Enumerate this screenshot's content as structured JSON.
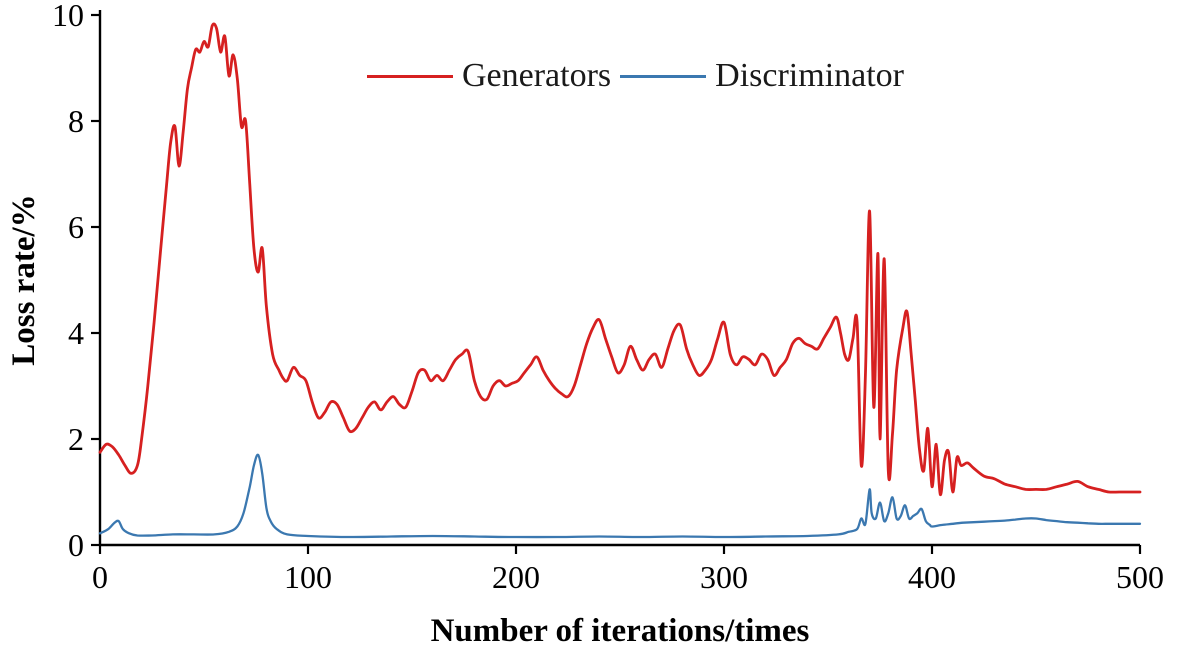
{
  "page": {
    "background": "#ffffff"
  },
  "chart_data": {
    "type": "line",
    "title": "",
    "xlabel": "Number of iterations/times",
    "ylabel": "Loss rate/%",
    "xlim": [
      0,
      500
    ],
    "ylim": [
      0,
      10
    ],
    "xticks": [
      0,
      100,
      200,
      300,
      400,
      500
    ],
    "yticks": [
      0,
      2,
      4,
      6,
      8,
      10
    ],
    "grid": false,
    "axis_color": "#000000",
    "legend_position": "top-center",
    "series": [
      {
        "name": "Generators",
        "color": "#d62020",
        "width": 2.8,
        "points": [
          [
            0,
            1.75
          ],
          [
            3,
            1.9
          ],
          [
            6,
            1.85
          ],
          [
            9,
            1.7
          ],
          [
            12,
            1.5
          ],
          [
            15,
            1.35
          ],
          [
            18,
            1.5
          ],
          [
            20,
            2.0
          ],
          [
            23,
            3.0
          ],
          [
            26,
            4.2
          ],
          [
            29,
            5.5
          ],
          [
            32,
            6.8
          ],
          [
            34,
            7.6
          ],
          [
            36,
            7.9
          ],
          [
            38,
            7.15
          ],
          [
            40,
            7.8
          ],
          [
            42,
            8.6
          ],
          [
            44,
            9.0
          ],
          [
            46,
            9.35
          ],
          [
            48,
            9.3
          ],
          [
            50,
            9.5
          ],
          [
            52,
            9.4
          ],
          [
            54,
            9.8
          ],
          [
            56,
            9.75
          ],
          [
            58,
            9.3
          ],
          [
            60,
            9.6
          ],
          [
            62,
            8.85
          ],
          [
            64,
            9.25
          ],
          [
            66,
            8.8
          ],
          [
            68,
            7.9
          ],
          [
            70,
            8.0
          ],
          [
            72,
            6.8
          ],
          [
            74,
            5.6
          ],
          [
            76,
            5.15
          ],
          [
            78,
            5.6
          ],
          [
            80,
            4.5
          ],
          [
            83,
            3.6
          ],
          [
            86,
            3.3
          ],
          [
            88,
            3.15
          ],
          [
            90,
            3.1
          ],
          [
            93,
            3.35
          ],
          [
            96,
            3.2
          ],
          [
            99,
            3.1
          ],
          [
            102,
            2.7
          ],
          [
            105,
            2.4
          ],
          [
            108,
            2.5
          ],
          [
            111,
            2.7
          ],
          [
            114,
            2.65
          ],
          [
            117,
            2.4
          ],
          [
            120,
            2.15
          ],
          [
            123,
            2.2
          ],
          [
            126,
            2.4
          ],
          [
            129,
            2.6
          ],
          [
            132,
            2.7
          ],
          [
            135,
            2.55
          ],
          [
            138,
            2.7
          ],
          [
            141,
            2.8
          ],
          [
            144,
            2.65
          ],
          [
            147,
            2.6
          ],
          [
            150,
            2.9
          ],
          [
            153,
            3.25
          ],
          [
            156,
            3.3
          ],
          [
            159,
            3.1
          ],
          [
            162,
            3.2
          ],
          [
            165,
            3.1
          ],
          [
            168,
            3.3
          ],
          [
            171,
            3.5
          ],
          [
            174,
            3.6
          ],
          [
            177,
            3.65
          ],
          [
            180,
            3.1
          ],
          [
            183,
            2.8
          ],
          [
            186,
            2.75
          ],
          [
            189,
            3.0
          ],
          [
            192,
            3.1
          ],
          [
            195,
            3.0
          ],
          [
            198,
            3.05
          ],
          [
            201,
            3.1
          ],
          [
            204,
            3.25
          ],
          [
            207,
            3.4
          ],
          [
            210,
            3.55
          ],
          [
            213,
            3.3
          ],
          [
            216,
            3.1
          ],
          [
            219,
            2.95
          ],
          [
            222,
            2.85
          ],
          [
            225,
            2.8
          ],
          [
            228,
            3.0
          ],
          [
            231,
            3.4
          ],
          [
            234,
            3.8
          ],
          [
            237,
            4.1
          ],
          [
            240,
            4.25
          ],
          [
            243,
            3.9
          ],
          [
            246,
            3.55
          ],
          [
            249,
            3.25
          ],
          [
            252,
            3.4
          ],
          [
            255,
            3.75
          ],
          [
            258,
            3.5
          ],
          [
            261,
            3.3
          ],
          [
            264,
            3.5
          ],
          [
            267,
            3.6
          ],
          [
            270,
            3.35
          ],
          [
            273,
            3.7
          ],
          [
            276,
            4.05
          ],
          [
            279,
            4.15
          ],
          [
            282,
            3.7
          ],
          [
            285,
            3.4
          ],
          [
            288,
            3.2
          ],
          [
            291,
            3.3
          ],
          [
            294,
            3.5
          ],
          [
            297,
            3.9
          ],
          [
            300,
            4.2
          ],
          [
            303,
            3.6
          ],
          [
            306,
            3.4
          ],
          [
            309,
            3.55
          ],
          [
            312,
            3.5
          ],
          [
            315,
            3.4
          ],
          [
            318,
            3.6
          ],
          [
            321,
            3.5
          ],
          [
            324,
            3.2
          ],
          [
            327,
            3.35
          ],
          [
            330,
            3.5
          ],
          [
            333,
            3.8
          ],
          [
            336,
            3.9
          ],
          [
            339,
            3.8
          ],
          [
            342,
            3.75
          ],
          [
            345,
            3.7
          ],
          [
            348,
            3.9
          ],
          [
            351,
            4.1
          ],
          [
            354,
            4.3
          ],
          [
            356,
            4.0
          ],
          [
            358,
            3.6
          ],
          [
            360,
            3.5
          ],
          [
            362,
            3.9
          ],
          [
            364,
            4.2
          ],
          [
            366,
            1.5
          ],
          [
            368,
            3.2
          ],
          [
            370,
            6.3
          ],
          [
            372,
            2.6
          ],
          [
            374,
            5.5
          ],
          [
            375,
            2.0
          ],
          [
            377,
            5.4
          ],
          [
            379,
            1.4
          ],
          [
            381,
            2.1
          ],
          [
            383,
            3.3
          ],
          [
            386,
            4.1
          ],
          [
            388,
            4.4
          ],
          [
            390,
            3.6
          ],
          [
            392,
            2.7
          ],
          [
            394,
            1.8
          ],
          [
            396,
            1.4
          ],
          [
            398,
            2.2
          ],
          [
            400,
            1.1
          ],
          [
            402,
            1.9
          ],
          [
            404,
            0.95
          ],
          [
            406,
            1.6
          ],
          [
            408,
            1.75
          ],
          [
            410,
            1.0
          ],
          [
            412,
            1.65
          ],
          [
            414,
            1.5
          ],
          [
            417,
            1.55
          ],
          [
            420,
            1.45
          ],
          [
            425,
            1.3
          ],
          [
            430,
            1.25
          ],
          [
            435,
            1.15
          ],
          [
            440,
            1.1
          ],
          [
            445,
            1.05
          ],
          [
            450,
            1.05
          ],
          [
            455,
            1.05
          ],
          [
            460,
            1.1
          ],
          [
            465,
            1.15
          ],
          [
            470,
            1.2
          ],
          [
            475,
            1.1
          ],
          [
            480,
            1.05
          ],
          [
            485,
            1.0
          ],
          [
            490,
            1.0
          ],
          [
            495,
            1.0
          ],
          [
            500,
            1.0
          ]
        ]
      },
      {
        "name": "Discriminator",
        "color": "#3b78b0",
        "width": 2.3,
        "points": [
          [
            0,
            0.22
          ],
          [
            4,
            0.3
          ],
          [
            7,
            0.42
          ],
          [
            9,
            0.45
          ],
          [
            11,
            0.3
          ],
          [
            14,
            0.22
          ],
          [
            18,
            0.18
          ],
          [
            25,
            0.18
          ],
          [
            35,
            0.2
          ],
          [
            45,
            0.2
          ],
          [
            55,
            0.2
          ],
          [
            62,
            0.25
          ],
          [
            66,
            0.35
          ],
          [
            69,
            0.6
          ],
          [
            72,
            1.1
          ],
          [
            74,
            1.5
          ],
          [
            76,
            1.7
          ],
          [
            78,
            1.35
          ],
          [
            80,
            0.7
          ],
          [
            82,
            0.45
          ],
          [
            85,
            0.3
          ],
          [
            90,
            0.2
          ],
          [
            100,
            0.17
          ],
          [
            120,
            0.15
          ],
          [
            140,
            0.16
          ],
          [
            160,
            0.17
          ],
          [
            180,
            0.16
          ],
          [
            200,
            0.15
          ],
          [
            220,
            0.15
          ],
          [
            240,
            0.16
          ],
          [
            260,
            0.15
          ],
          [
            280,
            0.16
          ],
          [
            300,
            0.15
          ],
          [
            320,
            0.16
          ],
          [
            340,
            0.17
          ],
          [
            355,
            0.2
          ],
          [
            360,
            0.25
          ],
          [
            364,
            0.3
          ],
          [
            366,
            0.5
          ],
          [
            368,
            0.4
          ],
          [
            370,
            1.05
          ],
          [
            371,
            0.6
          ],
          [
            373,
            0.5
          ],
          [
            375,
            0.8
          ],
          [
            377,
            0.45
          ],
          [
            379,
            0.6
          ],
          [
            381,
            0.9
          ],
          [
            383,
            0.5
          ],
          [
            385,
            0.55
          ],
          [
            387,
            0.75
          ],
          [
            389,
            0.5
          ],
          [
            391,
            0.55
          ],
          [
            393,
            0.6
          ],
          [
            395,
            0.68
          ],
          [
            397,
            0.45
          ],
          [
            399,
            0.38
          ],
          [
            400,
            0.35
          ],
          [
            405,
            0.38
          ],
          [
            410,
            0.4
          ],
          [
            415,
            0.42
          ],
          [
            420,
            0.43
          ],
          [
            425,
            0.44
          ],
          [
            430,
            0.45
          ],
          [
            435,
            0.46
          ],
          [
            440,
            0.48
          ],
          [
            445,
            0.5
          ],
          [
            450,
            0.5
          ],
          [
            455,
            0.47
          ],
          [
            460,
            0.45
          ],
          [
            465,
            0.43
          ],
          [
            470,
            0.42
          ],
          [
            475,
            0.41
          ],
          [
            480,
            0.4
          ],
          [
            485,
            0.4
          ],
          [
            490,
            0.4
          ],
          [
            495,
            0.4
          ],
          [
            500,
            0.4
          ]
        ]
      }
    ]
  }
}
